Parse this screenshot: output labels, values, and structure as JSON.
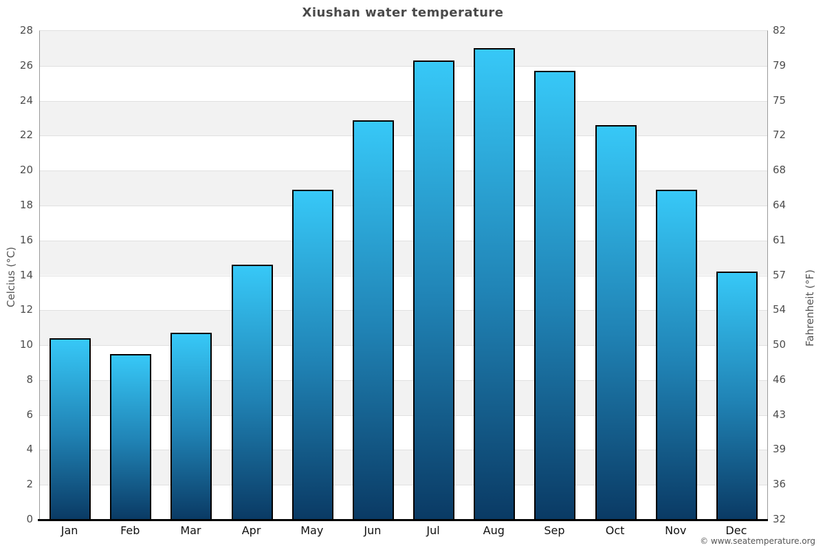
{
  "title": "Xiushan water temperature",
  "footer_credit": "© www.seatemperature.org",
  "axes": {
    "left_title": "Celcius (°C)",
    "right_title": "Fahrenheit (°F)"
  },
  "chart_data": {
    "type": "bar",
    "title": "Xiushan water temperature",
    "categories": [
      "Jan",
      "Feb",
      "Mar",
      "Apr",
      "May",
      "Jun",
      "Jul",
      "Aug",
      "Sep",
      "Oct",
      "Nov",
      "Dec"
    ],
    "values": [
      10.4,
      9.5,
      10.7,
      14.6,
      18.9,
      22.9,
      26.3,
      27.0,
      25.7,
      22.6,
      18.9,
      14.2
    ],
    "xlabel": "",
    "ylabel_left": "Celcius (°C)",
    "ylabel_right": "Fahrenheit (°F)",
    "ylim": [
      0,
      28
    ],
    "yticks_celsius": [
      0,
      2,
      4,
      6,
      8,
      10,
      12,
      14,
      16,
      18,
      20,
      22,
      24,
      26,
      28
    ],
    "yticks_fahrenheit": [
      32,
      36,
      39,
      43,
      46,
      50,
      54,
      57,
      61,
      64,
      68,
      72,
      75,
      79,
      82
    ],
    "grid": "horizontal bands every 2°C, alternating gray/white from top",
    "legend": "none"
  },
  "colors": {
    "band_gray": "#f2f2f2",
    "gridline": "#e0e0e0",
    "bar_top": "#37c8f7",
    "bar_bottom": "#0a3a64",
    "bar_border": "#000000",
    "axis_line": "#999999",
    "x_axis_line": "#000000",
    "title_text": "#4a4a4a",
    "tick_text": "#4d4d4d",
    "month_text": "#111111",
    "footer_text": "#555555"
  }
}
